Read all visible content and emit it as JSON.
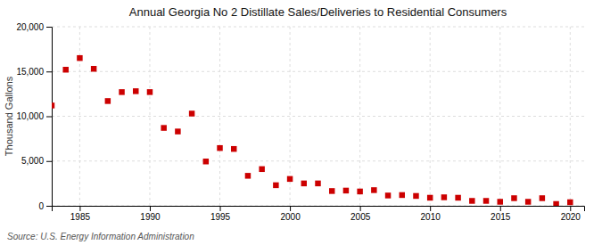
{
  "chart_data": {
    "type": "scatter",
    "title": "Annual Georgia No 2 Distillate Sales/Deliveries to Residential Consumers",
    "ylabel": "Thousand Gallons",
    "annotations": [
      "Source: U.S. Energy Information Administration"
    ],
    "color": "#cc0000",
    "marker": "square",
    "grid": true,
    "xlim": [
      1983,
      2021
    ],
    "ylim": [
      0,
      20000
    ],
    "xticks": [
      1985,
      1990,
      1995,
      2000,
      2005,
      2010,
      2015,
      2020
    ],
    "yticks": [
      0,
      {
        "value": 5000,
        "label": "5,000"
      },
      {
        "value": 10000,
        "label": "10,000"
      },
      {
        "value": 15000,
        "label": "15,000"
      },
      {
        "value": 20000,
        "label": "20,000"
      }
    ],
    "x": [
      1983,
      1984,
      1985,
      1986,
      1987,
      1988,
      1989,
      1990,
      1991,
      1992,
      1993,
      1994,
      1995,
      1996,
      1997,
      1998,
      1999,
      2000,
      2001,
      2002,
      2003,
      2004,
      2005,
      2006,
      2007,
      2008,
      2009,
      2010,
      2011,
      2012,
      2013,
      2014,
      2015,
      2016,
      2017,
      2018,
      2019,
      2020
    ],
    "values": [
      11200,
      15200,
      16500,
      15300,
      11700,
      12700,
      12800,
      12700,
      8700,
      8300,
      10300,
      4950,
      6450,
      6350,
      3350,
      4100,
      2300,
      3000,
      2500,
      2500,
      1650,
      1700,
      1600,
      1750,
      1150,
      1200,
      1100,
      900,
      950,
      900,
      550,
      550,
      450,
      850,
      450,
      850,
      200,
      400
    ]
  }
}
